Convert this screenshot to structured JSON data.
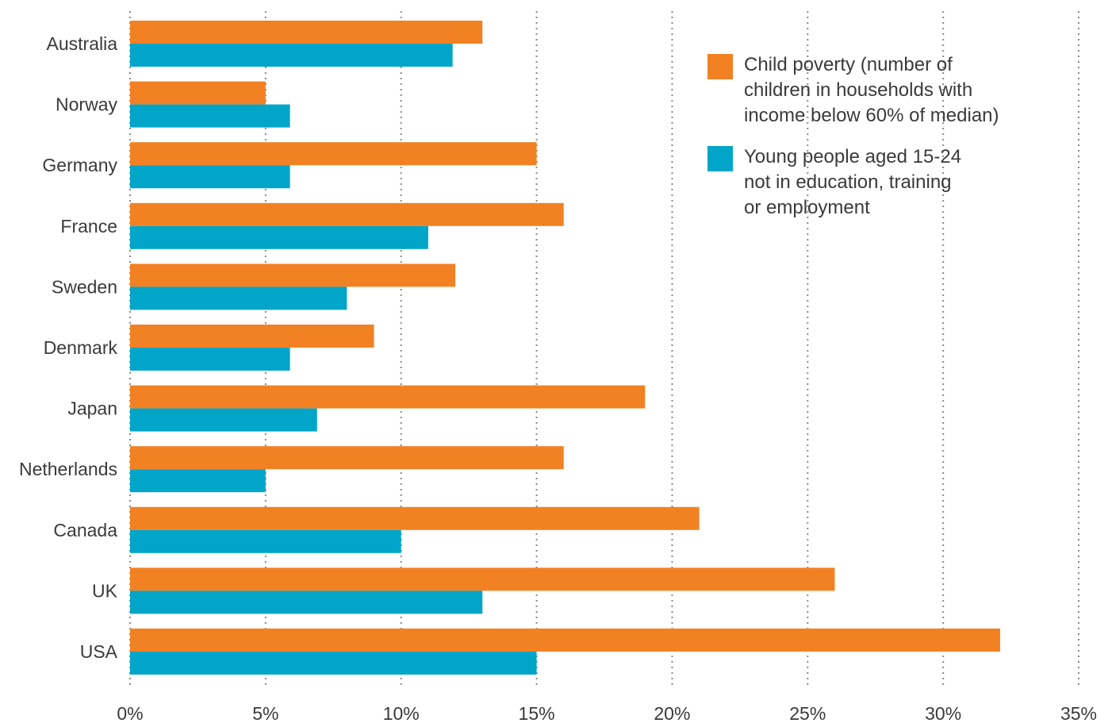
{
  "chart_data": {
    "type": "bar",
    "orientation": "horizontal",
    "categories": [
      "Australia",
      "Norway",
      "Germany",
      "France",
      "Sweden",
      "Denmark",
      "Japan",
      "Netherlands",
      "Canada",
      "UK",
      "USA"
    ],
    "series": [
      {
        "name": "Child poverty (number of\nchildren in households with\nincome below 60% of median)",
        "color": "#f28123",
        "values": [
          13,
          5,
          15,
          16,
          12,
          9,
          19,
          16,
          21,
          26,
          32.1
        ]
      },
      {
        "name": "Young people aged 15-24\nnot in education, training\nor employment",
        "color": "#00a5c8",
        "values": [
          11.9,
          5.9,
          5.9,
          11,
          8,
          5.9,
          6.9,
          5,
          10,
          13,
          15
        ]
      }
    ],
    "xlim": [
      0,
      35
    ],
    "xticks": [
      0,
      5,
      10,
      15,
      20,
      25,
      30,
      35
    ],
    "xtick_labels": [
      "0%",
      "5%",
      "10%",
      "15%",
      "20%",
      "25%",
      "30%",
      "35%"
    ],
    "grid": "vertical dotted",
    "legend_position": "top-right",
    "title": "",
    "xlabel": "",
    "ylabel": ""
  }
}
